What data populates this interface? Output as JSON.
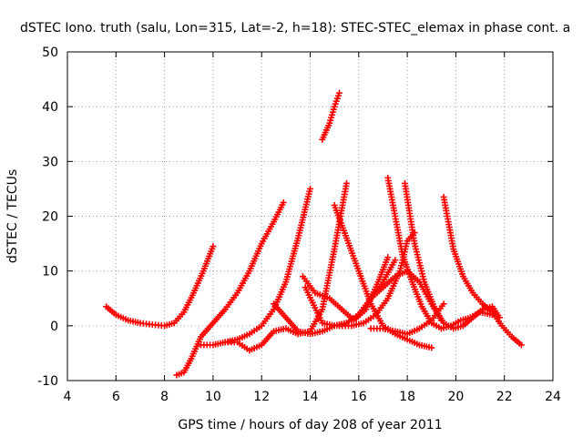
{
  "chart_data": {
    "type": "scatter",
    "title": "dSTEC Iono. truth (salu, Lon=315, Lat=-2, h=18): STEC-STEC_elemax in phase cont. a",
    "xlabel": "GPS time / hours of day 208 of year 2011",
    "ylabel": "dSTEC  / TECUs",
    "xlim": [
      4,
      24
    ],
    "ylim": [
      -10,
      50
    ],
    "xticks": [
      4,
      6,
      8,
      10,
      12,
      14,
      16,
      18,
      20,
      22,
      24
    ],
    "yticks": [
      -10,
      0,
      10,
      20,
      30,
      40,
      50
    ],
    "grid": true,
    "marker": "plus",
    "color": "#ff0000",
    "series": [
      {
        "x": [
          5.6,
          6.0,
          6.5,
          7.0,
          7.5,
          8.0,
          8.4,
          8.8,
          9.2,
          9.6,
          10.0
        ],
        "y": [
          3.5,
          2.0,
          1.0,
          0.5,
          0.2,
          0.0,
          0.5,
          2.5,
          6.0,
          10.0,
          14.5
        ]
      },
      {
        "x": [
          8.5,
          8.8,
          9.1,
          9.5,
          10.0,
          10.5,
          11.0,
          11.5,
          12.0,
          12.5,
          12.9
        ],
        "y": [
          -9.0,
          -8.5,
          -6.0,
          -2.0,
          0.5,
          3.0,
          6.0,
          10.0,
          15.0,
          19.0,
          22.5
        ]
      },
      {
        "x": [
          9.5,
          10.0,
          10.5,
          11.0,
          11.5,
          12.0,
          12.5,
          13.0,
          13.5,
          14.0
        ],
        "y": [
          -3.5,
          -3.5,
          -3.0,
          -2.5,
          -1.5,
          0.0,
          3.0,
          8.0,
          16.0,
          25.0
        ]
      },
      {
        "x": [
          10.5,
          11.0,
          11.5,
          12.0,
          12.5,
          13.0,
          13.5,
          14.0,
          14.5,
          15.0,
          15.5
        ],
        "y": [
          -3.0,
          -3.0,
          -4.5,
          -3.5,
          -1.0,
          -0.5,
          -1.5,
          -1.0,
          3.0,
          14.0,
          26.0
        ]
      },
      {
        "x": [
          12.5,
          13.0,
          13.5,
          14.0,
          14.5,
          15.0,
          15.5,
          16.0,
          16.5,
          17.0,
          17.5
        ],
        "y": [
          4.0,
          1.5,
          -1.0,
          -1.5,
          -1.0,
          0.0,
          0.5,
          2.0,
          5.0,
          8.0,
          12.0
        ]
      },
      {
        "x": [
          13.7,
          14.2,
          14.8,
          15.3,
          15.8,
          16.3,
          16.8,
          17.2
        ],
        "y": [
          9.0,
          6.0,
          5.0,
          3.0,
          1.0,
          3.0,
          8.0,
          12.5
        ]
      },
      {
        "x": [
          14.5,
          14.8,
          15.0,
          15.2
        ],
        "y": [
          34.0,
          37.0,
          40.0,
          42.5
        ]
      },
      {
        "x": [
          15.0,
          15.5,
          16.0,
          16.5,
          17.0,
          17.5,
          18.0,
          18.5,
          19.0
        ],
        "y": [
          22.0,
          16.0,
          10.0,
          4.0,
          0.0,
          -1.5,
          -2.5,
          -3.5,
          -4.0
        ]
      },
      {
        "x": [
          13.8,
          14.5,
          15.0,
          15.5,
          16.0,
          16.5,
          17.0,
          17.5,
          18.0,
          18.5,
          19.0,
          19.4
        ],
        "y": [
          7.0,
          0.5,
          0.0,
          0.5,
          2.0,
          5.0,
          7.0,
          9.0,
          10.0,
          8.0,
          4.0,
          1.0
        ]
      },
      {
        "x": [
          15.2,
          15.7,
          16.2,
          16.7,
          17.2,
          17.7,
          18.0,
          18.3
        ],
        "y": [
          0.0,
          0.0,
          0.5,
          2.0,
          5.0,
          10.0,
          15.5,
          17.0
        ]
      },
      {
        "x": [
          17.2,
          17.5,
          17.8,
          18.2,
          18.6,
          19.0,
          19.4,
          19.8,
          20.2,
          20.6,
          21.0,
          21.5
        ],
        "y": [
          27.0,
          20.0,
          13.0,
          8.0,
          3.5,
          0.5,
          -0.5,
          0.0,
          1.0,
          1.5,
          2.5,
          2.0
        ]
      },
      {
        "x": [
          17.9,
          18.3,
          18.7,
          19.1,
          19.5,
          19.9,
          20.3,
          20.7,
          21.1,
          21.5,
          21.8
        ],
        "y": [
          26.0,
          15.0,
          8.0,
          3.5,
          0.5,
          -0.5,
          0.0,
          1.5,
          3.0,
          3.5,
          1.5
        ]
      },
      {
        "x": [
          19.5,
          19.9,
          20.3,
          20.7,
          21.1,
          21.5,
          21.9,
          22.3,
          22.7
        ],
        "y": [
          23.5,
          14.0,
          9.0,
          6.0,
          4.0,
          2.5,
          0.0,
          -2.0,
          -3.5
        ]
      },
      {
        "x": [
          16.5,
          17.0,
          17.5,
          18.0,
          18.5,
          19.0,
          19.5
        ],
        "y": [
          -0.5,
          -0.5,
          -1.0,
          -1.5,
          -0.5,
          1.0,
          4.0
        ]
      }
    ]
  }
}
